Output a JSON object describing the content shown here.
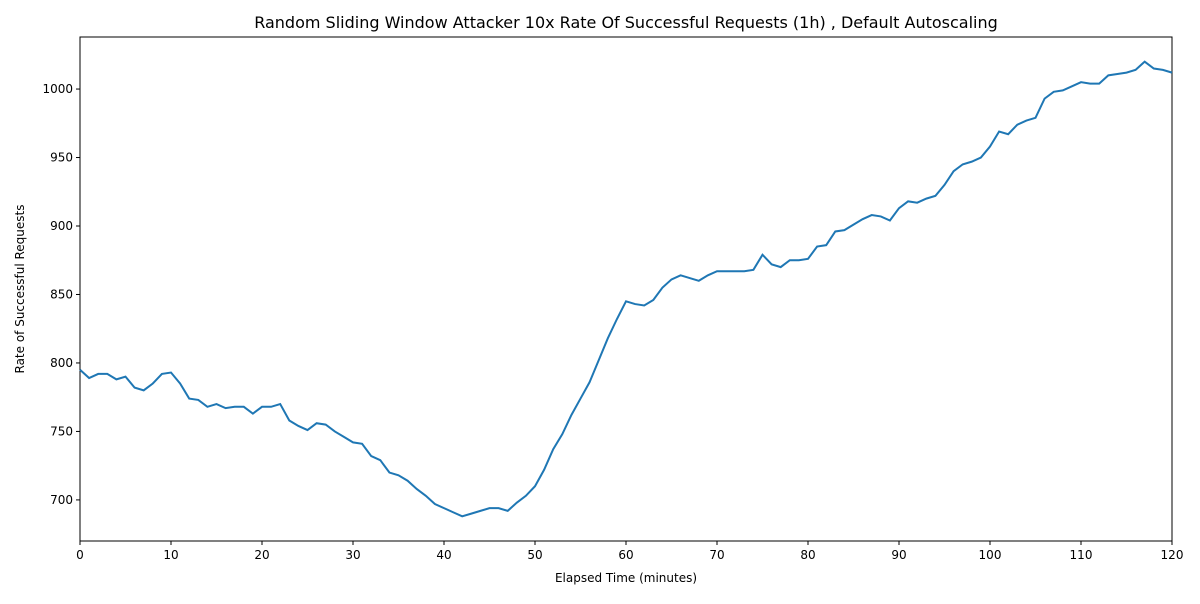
{
  "chart_data": {
    "type": "line",
    "title": "Random Sliding Window Attacker 10x Rate Of Successful Requests (1h) , Default Autoscaling",
    "x_label": "Elapsed Time (minutes)",
    "y_label": "Rate of Successful Requests",
    "x": [
      0,
      1,
      2,
      3,
      4,
      5,
      6,
      7,
      8,
      9,
      10,
      11,
      12,
      13,
      14,
      15,
      16,
      17,
      18,
      19,
      20,
      21,
      22,
      23,
      24,
      25,
      26,
      27,
      28,
      29,
      30,
      31,
      32,
      33,
      34,
      35,
      36,
      37,
      38,
      39,
      40,
      41,
      42,
      43,
      44,
      45,
      46,
      47,
      48,
      49,
      50,
      51,
      52,
      53,
      54,
      55,
      56,
      57,
      58,
      59,
      60,
      61,
      62,
      63,
      64,
      65,
      66,
      67,
      68,
      69,
      70,
      71,
      72,
      73,
      74,
      75,
      76,
      77,
      78,
      79,
      80,
      81,
      82,
      83,
      84,
      85,
      86,
      87,
      88,
      89,
      90,
      91,
      92,
      93,
      94,
      95,
      96,
      97,
      98,
      99,
      100,
      101,
      102,
      103,
      104,
      105,
      106,
      107,
      108,
      109,
      110,
      111,
      112,
      113,
      114,
      115,
      116,
      117,
      118,
      119,
      120
    ],
    "series": [
      {
        "name": "Rate of Successful Requests",
        "color": "#1f77b4",
        "values": [
          795,
          789,
          792,
          792,
          788,
          790,
          782,
          780,
          785,
          792,
          793,
          785,
          774,
          773,
          768,
          770,
          767,
          768,
          768,
          763,
          768,
          768,
          770,
          758,
          754,
          751,
          756,
          755,
          750,
          746,
          742,
          741,
          732,
          729,
          720,
          718,
          714,
          708,
          703,
          697,
          694,
          691,
          688,
          690,
          692,
          694,
          694,
          692,
          698,
          703,
          710,
          722,
          737,
          748,
          762,
          774,
          786,
          802,
          818,
          832,
          845,
          843,
          842,
          846,
          855,
          861,
          864,
          862,
          860,
          864,
          867,
          867,
          867,
          867,
          868,
          879,
          872,
          870,
          875,
          875,
          876,
          885,
          886,
          896,
          897,
          901,
          905,
          908,
          907,
          904,
          913,
          918,
          917,
          920,
          922,
          930,
          940,
          945,
          947,
          950,
          958,
          969,
          967,
          974,
          977,
          979,
          993,
          998,
          999,
          1002,
          1005,
          1004,
          1004,
          1010,
          1011,
          1012,
          1014,
          1020,
          1015,
          1014,
          1012
        ]
      }
    ],
    "xlim": [
      0,
      120
    ],
    "xticks": [
      0,
      10,
      20,
      30,
      40,
      50,
      60,
      70,
      80,
      90,
      100,
      110,
      120
    ],
    "ylim": [
      670,
      1038
    ],
    "yticks": [
      700,
      750,
      800,
      850,
      900,
      950,
      1000
    ],
    "grid": false
  }
}
